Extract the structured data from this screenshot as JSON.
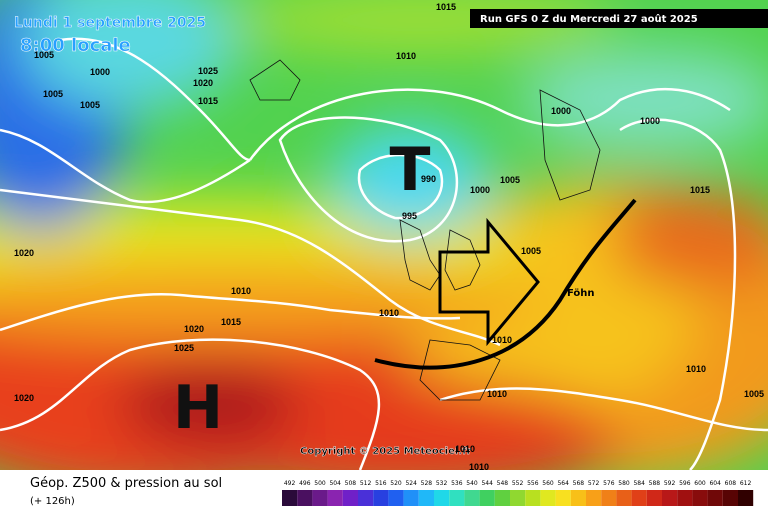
{
  "header": {
    "date": "Lundi 1 septembre 2025",
    "time": "8:00 locale",
    "run": "Run GFS 0 Z du Mercredi 27 août 2025"
  },
  "map": {
    "low": "T",
    "high": "H",
    "annotation": "Föhn",
    "copyright": "Copyright © 2025 Meteociel.fr",
    "isobar_labels": [
      "1015",
      "1000",
      "1005",
      "1005",
      "1025",
      "1020",
      "1015",
      "1010",
      "990",
      "995",
      "1000",
      "1005",
      "1000",
      "1000",
      "1015",
      "1005",
      "1020",
      "1010",
      "1015",
      "1020",
      "1025",
      "1010",
      "1010",
      "1010",
      "1020",
      "1010",
      "1005",
      "1010",
      "1010",
      "1005"
    ]
  },
  "footer": {
    "title": "Géop. Z500 & pression au sol",
    "lead": "(+ 126h)",
    "scale_labels": [
      "492",
      "496",
      "500",
      "504",
      "508",
      "512",
      "516",
      "520",
      "524",
      "528",
      "532",
      "536",
      "540",
      "544",
      "548",
      "552",
      "556",
      "560",
      "564",
      "568",
      "572",
      "576",
      "580",
      "584",
      "588",
      "592",
      "596",
      "600",
      "604",
      "608",
      "612"
    ]
  }
}
